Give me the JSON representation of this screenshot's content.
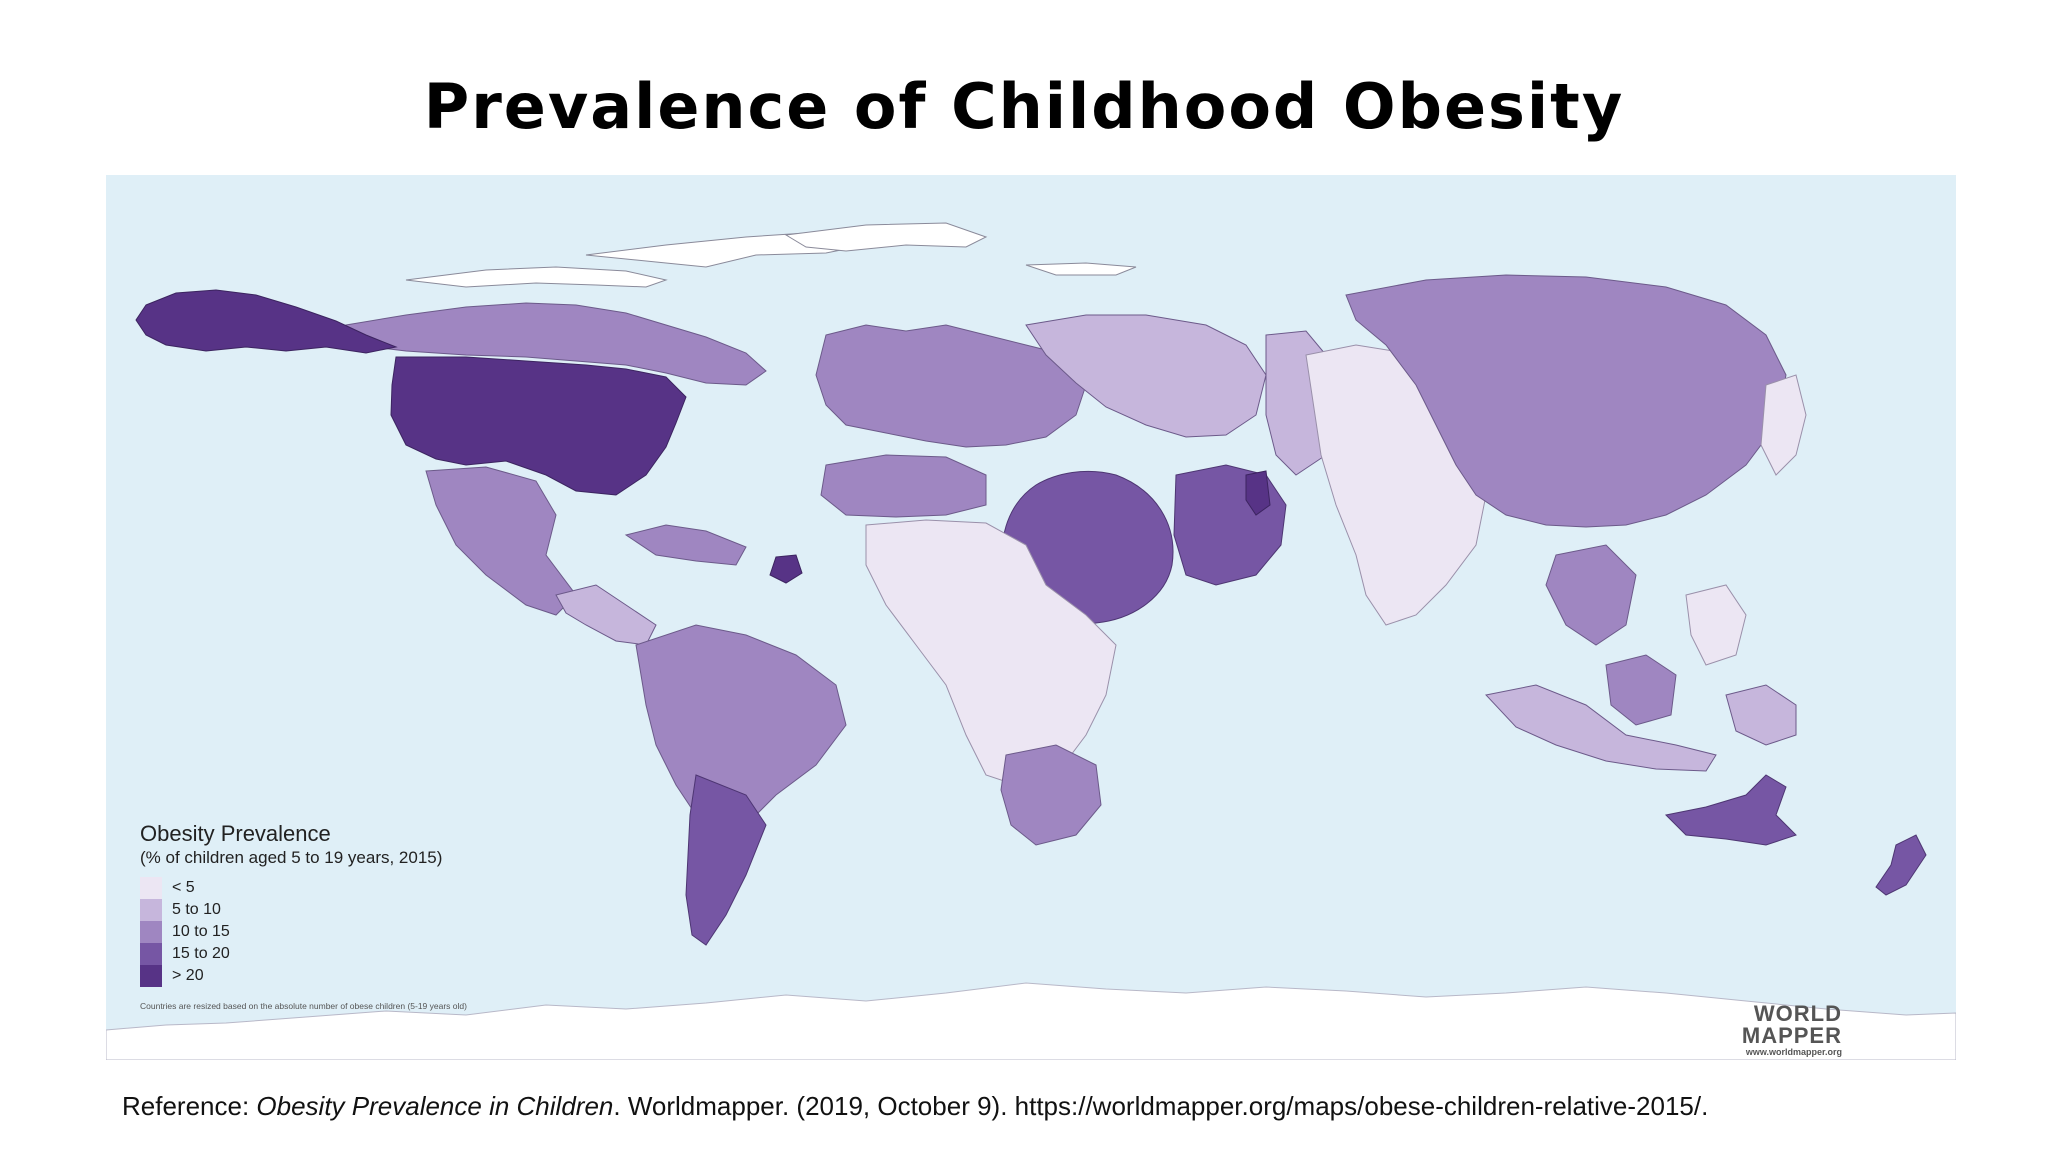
{
  "title": "Prevalence of Childhood Obesity",
  "legend": {
    "title": "Obesity Prevalence",
    "subtitle": "(% of children aged 5 to 19 years, 2015)",
    "items": [
      {
        "label": "< 5",
        "color": "#ece6f3"
      },
      {
        "label": "5 to 10",
        "color": "#c6b6dc"
      },
      {
        "label": "10 to 15",
        "color": "#9f86c1"
      },
      {
        "label": "15 to 20",
        "color": "#7656a4"
      },
      {
        "label": "> 20",
        "color": "#573386"
      }
    ],
    "note": "Countries are resized based on the absolute number of obese children (5-19 years old)"
  },
  "logo": {
    "line1": "WORLD",
    "line2": "MAPPER",
    "url": "www.worldmapper.org"
  },
  "reference": {
    "prefix": "Reference: ",
    "title_italic": "Obesity Prevalence in Children",
    "suffix": ". Worldmapper. (2019, October 9). https://worldmapper.org/maps/obese-children-relative-2015/."
  },
  "colors": {
    "ocean": "#dfeff7",
    "land_white": "#ffffff"
  },
  "regions": [
    {
      "name": "North America (USA)",
      "category": "> 20"
    },
    {
      "name": "Alaska",
      "category": "> 20"
    },
    {
      "name": "Canada",
      "category": "10 to 15"
    },
    {
      "name": "Mexico",
      "category": "10 to 15"
    },
    {
      "name": "Central America",
      "category": "5 to 10"
    },
    {
      "name": "Caribbean",
      "category": "10 to 15"
    },
    {
      "name": "South America",
      "category": "10 to 15"
    },
    {
      "name": "Argentina",
      "category": "15 to 20"
    },
    {
      "name": "Europe",
      "category": "10 to 15"
    },
    {
      "name": "Eastern Europe",
      "category": "5 to 10"
    },
    {
      "name": "North Africa",
      "category": "10 to 15"
    },
    {
      "name": "Sub-Saharan Africa",
      "category": "< 5"
    },
    {
      "name": "South Africa",
      "category": "10 to 15"
    },
    {
      "name": "Middle East",
      "category": "15 to 20"
    },
    {
      "name": "Central Asia",
      "category": "5 to 10"
    },
    {
      "name": "South Asia",
      "category": "< 5"
    },
    {
      "name": "China",
      "category": "10 to 15"
    },
    {
      "name": "Southeast Asia",
      "category": "10 to 15"
    },
    {
      "name": "Australia",
      "category": "15 to 20"
    },
    {
      "name": "New Zealand",
      "category": "15 to 20"
    }
  ]
}
